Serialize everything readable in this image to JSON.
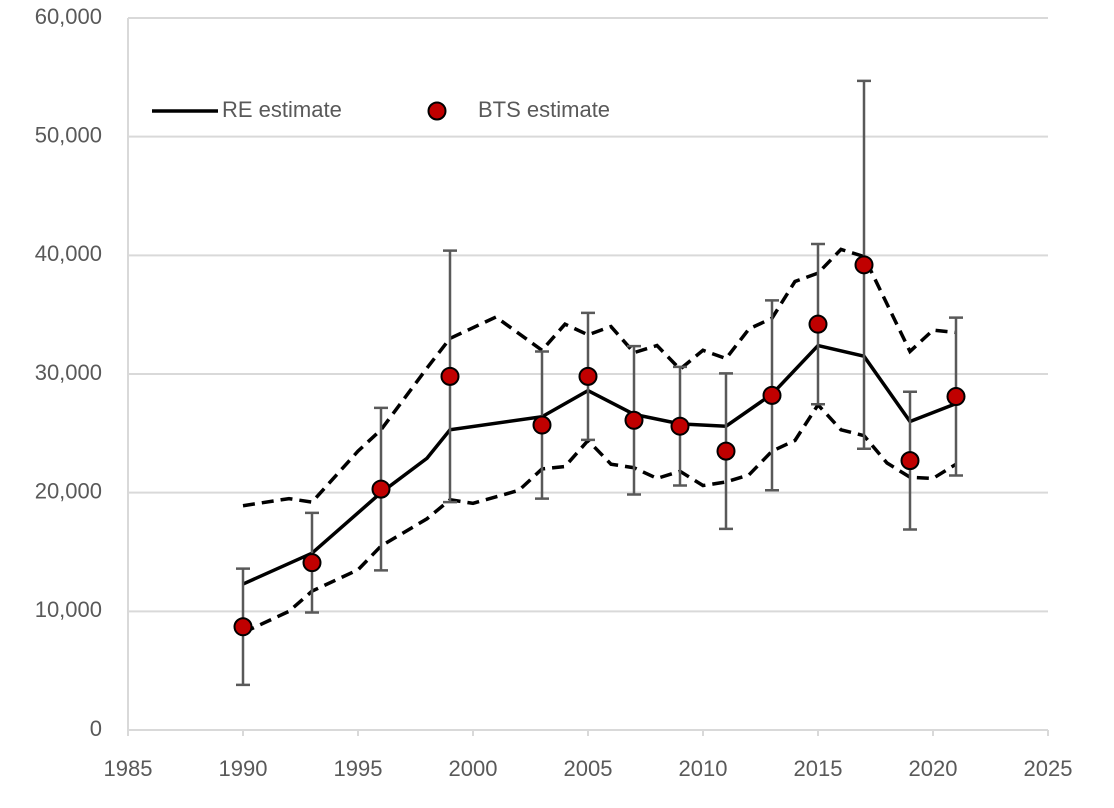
{
  "chart_data": {
    "type": "line",
    "xlim": [
      1985,
      2025
    ],
    "xticks": [
      1985,
      1990,
      1995,
      2000,
      2005,
      2010,
      2015,
      2020,
      2025
    ],
    "ylim": [
      0,
      60000
    ],
    "yticks": [
      0,
      {
        "value": 10000,
        "label": "10,000"
      },
      {
        "value": 20000,
        "label": "20,000"
      },
      {
        "value": 30000,
        "label": "30,000"
      },
      {
        "value": 40000,
        "label": "40,000"
      },
      {
        "value": 50000,
        "label": "50,000"
      },
      {
        "value": 60000,
        "label": "60,000"
      }
    ],
    "grid": true,
    "legend": "upper left",
    "series": [
      {
        "name": "RE estimate",
        "color": "#000000",
        "dashed": false,
        "x": [
          1990,
          1993,
          1996,
          1998,
          1999,
          2003,
          2005,
          2007,
          2009,
          2011,
          2013,
          2015,
          2017,
          2019,
          2021
        ],
        "values": [
          12300,
          14900,
          20000,
          22900,
          25300,
          26400,
          28600,
          26600,
          25800,
          25600,
          28300,
          32400,
          31500,
          26000,
          27500
        ]
      },
      {
        "color": "#000000",
        "dashed": true,
        "x": [
          1990,
          1992,
          1993,
          1995,
          1996,
          1998,
          1999,
          2001,
          2003,
          2004,
          2005,
          2006,
          2007,
          2008,
          2009,
          2010,
          2011,
          2012,
          2013,
          2014,
          2015,
          2016,
          2017,
          2019,
          2020,
          2021
        ],
        "values": [
          18900,
          19500,
          19200,
          23500,
          25300,
          30500,
          33000,
          34800,
          32000,
          34200,
          33300,
          34000,
          31800,
          32400,
          30400,
          32000,
          31300,
          33800,
          34700,
          37800,
          38500,
          40500,
          39900,
          31900,
          33700,
          33500
        ]
      },
      {
        "color": "#000000",
        "dashed": true,
        "x": [
          1990,
          1992,
          1993,
          1995,
          1996,
          1998,
          1999,
          2000,
          2002,
          2003,
          2004,
          2005,
          2006,
          2007,
          2008,
          2009,
          2010,
          2011,
          2012,
          2013,
          2014,
          2015,
          2016,
          2017,
          2018,
          2019,
          2020,
          2021
        ],
        "values": [
          8200,
          10000,
          11700,
          13500,
          15500,
          17800,
          19400,
          19100,
          20200,
          22000,
          22200,
          24400,
          22400,
          22100,
          21200,
          21800,
          20600,
          20900,
          21500,
          23500,
          24400,
          27400,
          25300,
          24800,
          22500,
          21300,
          21200,
          22400
        ]
      },
      {
        "name": "BTS estimate",
        "color": "#c00000",
        "type": "scatter",
        "error_color": "#595959",
        "x": [
          1990,
          1993,
          1996,
          1999,
          2003,
          2005,
          2007,
          2009,
          2011,
          2013,
          2015,
          2017,
          2019,
          2021
        ],
        "values": [
          8700,
          14100,
          20300,
          29800,
          25700,
          29800,
          26100,
          25600,
          23500,
          28200,
          34200,
          39200,
          22700,
          28100
        ],
        "errors": [
          4900,
          4200,
          6850,
          10600,
          6200,
          5350,
          6250,
          5000,
          6550,
          8000,
          6750,
          15500,
          5800,
          6650
        ]
      }
    ]
  }
}
